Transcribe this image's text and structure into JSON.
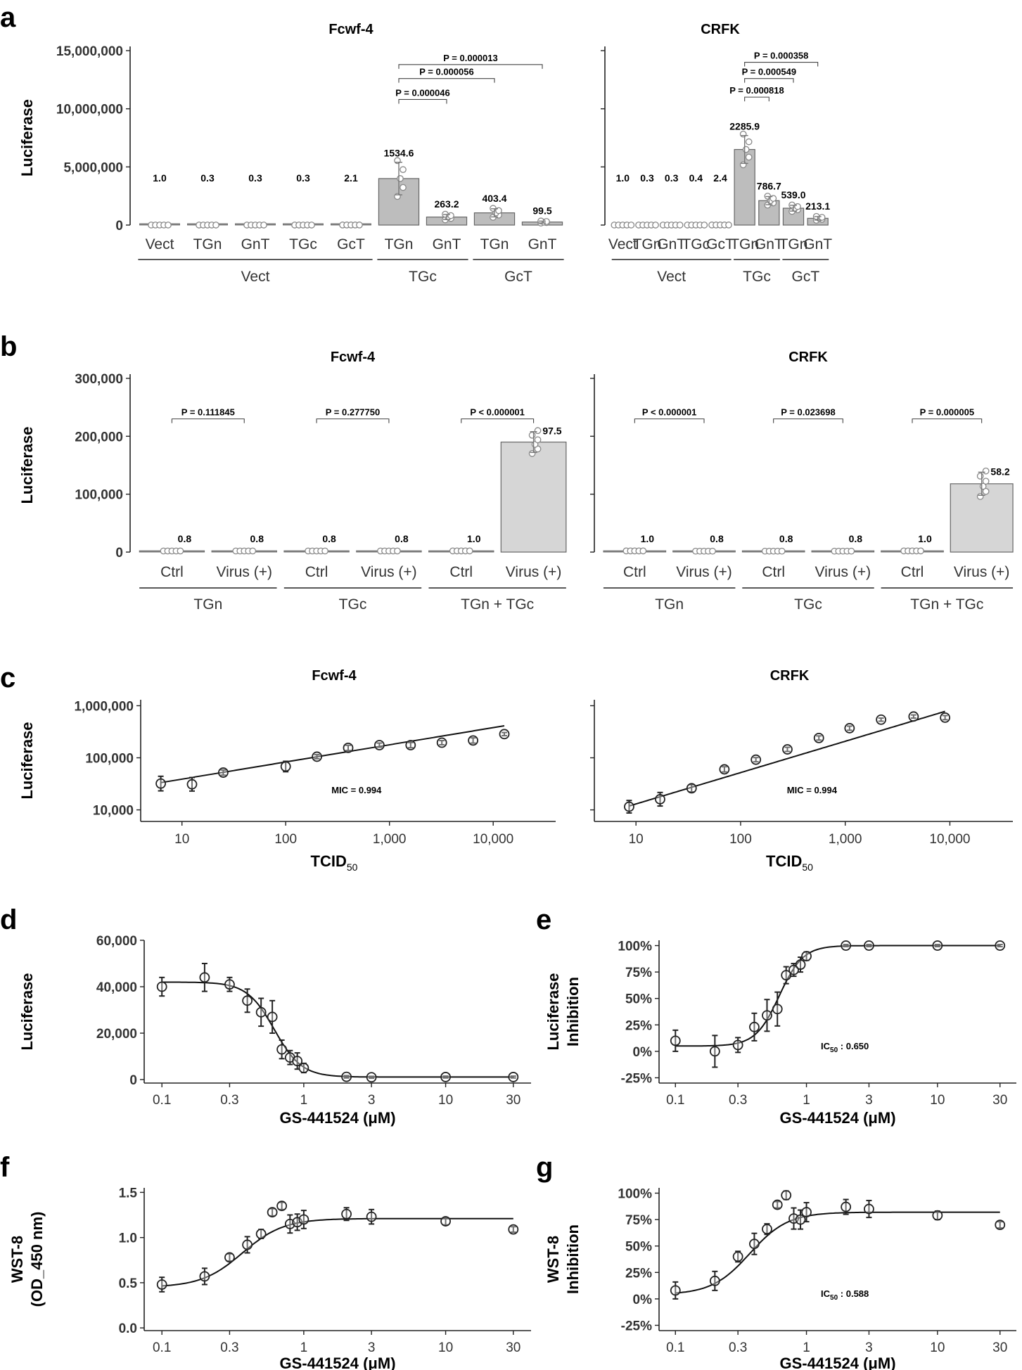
{
  "panel_labels": [
    "a",
    "b",
    "c",
    "d",
    "e",
    "f",
    "g"
  ],
  "chart_data": [
    {
      "id": "a_fcwf4",
      "panel": "a",
      "type": "bar",
      "title": "Fcwf-4",
      "ylabel": "Luciferase",
      "xlabel": "",
      "ylim": [
        0,
        15000000
      ],
      "yticks": [
        0,
        5000000,
        10000000,
        15000000
      ],
      "ytick_labels": [
        "0",
        "5,000,000",
        "10,000,000",
        "15,000,000"
      ],
      "categories": [
        "Vect",
        "TGn",
        "GnT",
        "TGc",
        "GcT",
        "TGn",
        "GnT",
        "TGn",
        "GnT"
      ],
      "values": [
        2600,
        800,
        800,
        800,
        5500,
        4000000,
        690000,
        1050000,
        260000
      ],
      "errors": [
        0,
        0,
        0,
        0,
        0,
        1400000,
        220000,
        350000,
        80000
      ],
      "data_labels": [
        "1.0",
        "0.3",
        "0.3",
        "0.3",
        "2.1",
        "1534.6",
        "263.2",
        "403.4",
        "99.5"
      ],
      "groups": [
        {
          "label": "Vect",
          "from": 0,
          "to": 4
        },
        {
          "label": "TGc",
          "from": 5,
          "to": 6
        },
        {
          "label": "GcT",
          "from": 7,
          "to": 8
        }
      ],
      "brackets": [
        {
          "label": "P = 0.000046",
          "from": 5,
          "to": 6,
          "y": 10800000
        },
        {
          "label": "P = 0.000056",
          "from": 5,
          "to": 7,
          "y": 12600000
        },
        {
          "label": "P = 0.000013",
          "from": 5,
          "to": 8,
          "y": 13800000
        }
      ]
    },
    {
      "id": "a_crfk",
      "panel": "a",
      "type": "bar",
      "title": "CRFK",
      "ylabel": "",
      "xlabel": "",
      "ylim": [
        0,
        15000000
      ],
      "yticks": [
        0,
        5000000,
        10000000,
        15000000
      ],
      "ytick_labels": [],
      "categories": [
        "Vect",
        "TGn",
        "GnT",
        "TGc",
        "GcT",
        "TGn",
        "GnT",
        "TGn",
        "GnT"
      ],
      "values": [
        2800,
        850,
        850,
        1100,
        6700,
        6500000,
        2100000,
        1450000,
        580000
      ],
      "errors": [
        0,
        0,
        0,
        0,
        0,
        1200000,
        350000,
        250000,
        150000
      ],
      "data_labels": [
        "1.0",
        "0.3",
        "0.3",
        "0.4",
        "2.4",
        "2285.9",
        "786.7",
        "539.0",
        "213.1"
      ],
      "groups": [
        {
          "label": "Vect",
          "from": 0,
          "to": 4
        },
        {
          "label": "TGc",
          "from": 5,
          "to": 6
        },
        {
          "label": "GcT",
          "from": 7,
          "to": 8
        }
      ],
      "brackets": [
        {
          "label": "P = 0.000818",
          "from": 5,
          "to": 6,
          "y": 11000000
        },
        {
          "label": "P = 0.000549",
          "from": 5,
          "to": 7,
          "y": 12600000
        },
        {
          "label": "P = 0.000358",
          "from": 5,
          "to": 8,
          "y": 14000000
        }
      ]
    },
    {
      "id": "b_fcwf4",
      "panel": "b",
      "type": "bar",
      "title": "Fcwf-4",
      "ylabel": "Luciferase",
      "xlabel": "",
      "ylim": [
        0,
        300000
      ],
      "yticks": [
        0,
        100000,
        200000,
        300000
      ],
      "ytick_labels": [
        "0",
        "100,000",
        "200,000",
        "300,000"
      ],
      "categories": [
        "Ctrl",
        "Virus (+)",
        "Ctrl",
        "Virus (+)",
        "Ctrl",
        "Virus (+)"
      ],
      "values": [
        1900,
        1900,
        1900,
        1900,
        2000,
        190000
      ],
      "errors": [
        0,
        0,
        0,
        0,
        0,
        18000
      ],
      "data_labels": [
        "0.8",
        "0.8",
        "0.8",
        "0.8",
        "1.0",
        "97.5"
      ],
      "groups": [
        {
          "label": "TGn",
          "from": 0,
          "to": 1
        },
        {
          "label": "TGc",
          "from": 2,
          "to": 3
        },
        {
          "label": "TGn + TGc",
          "from": 4,
          "to": 5
        }
      ],
      "brackets": [
        {
          "label": "P = 0.111845",
          "from": 0,
          "to": 1,
          "y": 230000
        },
        {
          "label": "P = 0.277750",
          "from": 2,
          "to": 3,
          "y": 230000
        },
        {
          "label": "P < 0.000001",
          "from": 4,
          "to": 5,
          "y": 230000
        }
      ]
    },
    {
      "id": "b_crfk",
      "panel": "b",
      "type": "bar",
      "title": "CRFK",
      "ylabel": "",
      "xlabel": "",
      "ylim": [
        0,
        300000
      ],
      "yticks": [
        0,
        100000,
        200000,
        300000
      ],
      "ytick_labels": [],
      "categories": [
        "Ctrl",
        "Virus (+)",
        "Ctrl",
        "Virus (+)",
        "Ctrl",
        "Virus (+)"
      ],
      "values": [
        2000,
        1600,
        1600,
        1600,
        2000,
        118000
      ],
      "errors": [
        0,
        0,
        0,
        0,
        0,
        20000
      ],
      "data_labels": [
        "1.0",
        "0.8",
        "0.8",
        "0.8",
        "1.0",
        "58.2"
      ],
      "groups": [
        {
          "label": "TGn",
          "from": 0,
          "to": 1
        },
        {
          "label": "TGc",
          "from": 2,
          "to": 3
        },
        {
          "label": "TGn + TGc",
          "from": 4,
          "to": 5
        }
      ],
      "brackets": [
        {
          "label": "P < 0.000001",
          "from": 0,
          "to": 1,
          "y": 230000
        },
        {
          "label": "P = 0.023698",
          "from": 2,
          "to": 3,
          "y": 230000
        },
        {
          "label": "P = 0.000005",
          "from": 4,
          "to": 5,
          "y": 230000
        }
      ]
    },
    {
      "id": "c_fcwf4",
      "panel": "c",
      "type": "scatter",
      "title": "Fcwf-4",
      "ylabel": "Luciferase",
      "xlabel": "TCID",
      "xlabel_sub": "50",
      "xscale": "log",
      "yscale": "log",
      "xlim": [
        4,
        40000
      ],
      "ylim": [
        6000,
        1300000
      ],
      "xticks": [
        10,
        100,
        1000,
        10000
      ],
      "xtick_labels": [
        "10",
        "100",
        "1,000",
        "10,000"
      ],
      "yticks": [
        10000,
        100000,
        1000000
      ],
      "ytick_labels": [
        "10,000",
        "100,000",
        "1,000,000"
      ],
      "x": [
        6.25,
        12.5,
        25,
        100,
        200,
        400,
        800,
        1600,
        3200,
        6400,
        12800
      ],
      "y": [
        32000,
        31000,
        52000,
        68000,
        105000,
        155000,
        175000,
        175000,
        195000,
        215000,
        285000
      ],
      "err": [
        0.14,
        0.13,
        0.05,
        0.1,
        0.04,
        0.05,
        0.04,
        0.05,
        0.04,
        0.05,
        0.03
      ],
      "fit": {
        "kind": "loglinear",
        "slope": 0.3297,
        "intercept": 4.2606,
        "x_range": [
          6.25,
          12800
        ]
      },
      "annotation": "MIC = 0.994"
    },
    {
      "id": "c_crfk",
      "panel": "c",
      "type": "scatter",
      "title": "CRFK",
      "ylabel": "",
      "xlabel": "TCID",
      "xlabel_sub": "50",
      "xscale": "log",
      "yscale": "log",
      "xlim": [
        4,
        40000
      ],
      "ylim": [
        6000,
        1300000
      ],
      "xticks": [
        10,
        100,
        1000,
        10000
      ],
      "xtick_labels": [
        "10",
        "100",
        "1,000",
        "10,000"
      ],
      "yticks": [
        10000,
        100000,
        1000000
      ],
      "ytick_labels": [],
      "x": [
        8.6,
        17,
        34,
        70,
        140,
        280,
        560,
        1100,
        2200,
        4500,
        9000
      ],
      "y": [
        11500,
        16000,
        26000,
        60000,
        92000,
        145000,
        240000,
        370000,
        540000,
        620000,
        590000
      ],
      "err": [
        0.12,
        0.13,
        0.07,
        0.05,
        0.04,
        0.04,
        0.04,
        0.04,
        0.03,
        0.03,
        0.04
      ],
      "fit": {
        "kind": "loglinear",
        "slope": 0.6015,
        "intercept": 3.5126,
        "x_range": [
          8.6,
          9000
        ]
      },
      "annotation": "MIC = 0.994"
    },
    {
      "id": "d",
      "panel": "d",
      "type": "scatter",
      "title": "",
      "ylabel": "Luciferase",
      "xlabel": "GS-441524 (μM)",
      "xscale": "log",
      "yscale": "linear",
      "xlim": [
        0.075,
        40
      ],
      "ylim": [
        -1500,
        60000
      ],
      "xticks": [
        0.1,
        0.3,
        1,
        3,
        10,
        30
      ],
      "xtick_labels": [
        "0.1",
        "0.3",
        "1",
        "3",
        "10",
        "30"
      ],
      "yticks": [
        0,
        20000,
        40000,
        60000
      ],
      "ytick_labels": [
        "0",
        "20,000",
        "40,000",
        "60,000"
      ],
      "x": [
        0.1,
        0.2,
        0.3,
        0.4,
        0.5,
        0.6,
        0.7,
        0.8,
        0.9,
        1.0,
        2,
        3,
        10,
        30
      ],
      "y": [
        40000,
        44000,
        41000,
        34000,
        29000,
        27000,
        13000,
        9500,
        8000,
        5000,
        1200,
        1000,
        1100,
        1100
      ],
      "err": [
        4000,
        6000,
        3000,
        5000,
        6000,
        7000,
        4000,
        3000,
        3500,
        2000,
        500,
        400,
        400,
        400
      ],
      "fit": {
        "kind": "hill",
        "top": 42000,
        "bottom": 1100,
        "ec50": 0.62,
        "h": 4.5,
        "x_range": [
          0.1,
          30
        ]
      },
      "annotation": ""
    },
    {
      "id": "e",
      "panel": "e",
      "type": "scatter",
      "title": "",
      "ylabel": "Luciferase",
      "ylabel2": "Inhibition",
      "xlabel": "GS-441524 (μM)",
      "xscale": "log",
      "yscale": "linear",
      "xlim": [
        0.075,
        40
      ],
      "ylim": [
        -30,
        105
      ],
      "xticks": [
        0.1,
        0.3,
        1,
        3,
        10,
        30
      ],
      "xtick_labels": [
        "0.1",
        "0.3",
        "1",
        "3",
        "10",
        "30"
      ],
      "yticks": [
        -25,
        0,
        25,
        50,
        75,
        100
      ],
      "ytick_labels": [
        "-25%",
        "0%",
        "25%",
        "50%",
        "75%",
        "100%"
      ],
      "x": [
        0.1,
        0.2,
        0.3,
        0.4,
        0.5,
        0.6,
        0.7,
        0.8,
        0.9,
        1.0,
        2,
        3,
        10,
        30
      ],
      "y": [
        10,
        0,
        6,
        23,
        34,
        40,
        72,
        77,
        82,
        90,
        100,
        100,
        100,
        100
      ],
      "err": [
        10,
        15,
        7,
        13,
        15,
        16,
        8,
        6,
        7,
        4,
        1,
        1,
        1,
        1
      ],
      "fit": {
        "kind": "hill",
        "top": 100,
        "bottom": 5,
        "ec50": 0.62,
        "h": 4.8,
        "x_range": [
          0.1,
          30
        ]
      },
      "annotation": "IC",
      "annotation_sub": "50",
      "annotation_value": " : 0.650"
    },
    {
      "id": "f",
      "panel": "f",
      "type": "scatter",
      "title": "",
      "ylabel": "WST-8",
      "ylabel2": "(OD_450 nm)",
      "xlabel": "GS-441524 (μM)",
      "xscale": "log",
      "yscale": "linear",
      "xlim": [
        0.075,
        40
      ],
      "ylim": [
        -0.03,
        1.55
      ],
      "xticks": [
        0.1,
        0.3,
        1,
        3,
        10,
        30
      ],
      "xtick_labels": [
        "0.1",
        "0.3",
        "1",
        "3",
        "10",
        "30"
      ],
      "yticks": [
        0,
        0.5,
        1.0,
        1.5
      ],
      "ytick_labels": [
        "0.0",
        "0.5",
        "1.0",
        "1.5"
      ],
      "x": [
        0.1,
        0.2,
        0.3,
        0.4,
        0.5,
        0.6,
        0.7,
        0.8,
        0.9,
        1.0,
        2,
        3,
        10,
        30
      ],
      "y": [
        0.48,
        0.57,
        0.78,
        0.92,
        1.04,
        1.28,
        1.35,
        1.15,
        1.17,
        1.2,
        1.26,
        1.23,
        1.18,
        1.09
      ],
      "err": [
        0.08,
        0.09,
        0.04,
        0.09,
        0.05,
        0.04,
        0.04,
        0.1,
        0.09,
        0.1,
        0.07,
        0.08,
        0.04,
        0.03
      ],
      "fit": {
        "kind": "hill",
        "top": 1.21,
        "bottom": 0.45,
        "ec50": 0.37,
        "h": 3.0,
        "x_range": [
          0.1,
          30
        ]
      },
      "annotation": ""
    },
    {
      "id": "g",
      "panel": "g",
      "type": "scatter",
      "title": "",
      "ylabel": "WST-8",
      "ylabel2": "Inhibition",
      "xlabel": "GS-441524 (μM)",
      "xscale": "log",
      "yscale": "linear",
      "xlim": [
        0.075,
        40
      ],
      "ylim": [
        -30,
        105
      ],
      "xticks": [
        0.1,
        0.3,
        1,
        3,
        10,
        30
      ],
      "xtick_labels": [
        "0.1",
        "0.3",
        "1",
        "3",
        "10",
        "30"
      ],
      "yticks": [
        -25,
        0,
        25,
        50,
        75,
        100
      ],
      "ytick_labels": [
        "-25%",
        "0%",
        "25%",
        "50%",
        "75%",
        "100%"
      ],
      "x": [
        0.1,
        0.2,
        0.3,
        0.4,
        0.5,
        0.6,
        0.7,
        0.8,
        0.9,
        1.0,
        2,
        3,
        10,
        30
      ],
      "y": [
        8,
        17,
        40,
        52,
        66,
        89,
        98,
        76,
        75,
        82,
        87,
        85,
        79,
        70
      ],
      "err": [
        8,
        9,
        5,
        10,
        5,
        3,
        4,
        10,
        9,
        9,
        7,
        8,
        4,
        3
      ],
      "fit": {
        "kind": "hill",
        "top": 82,
        "bottom": 4,
        "ec50": 0.37,
        "h": 3.0,
        "x_range": [
          0.1,
          30
        ]
      },
      "annotation": "IC",
      "annotation_sub": "50",
      "annotation_value": " : 0.588"
    }
  ]
}
